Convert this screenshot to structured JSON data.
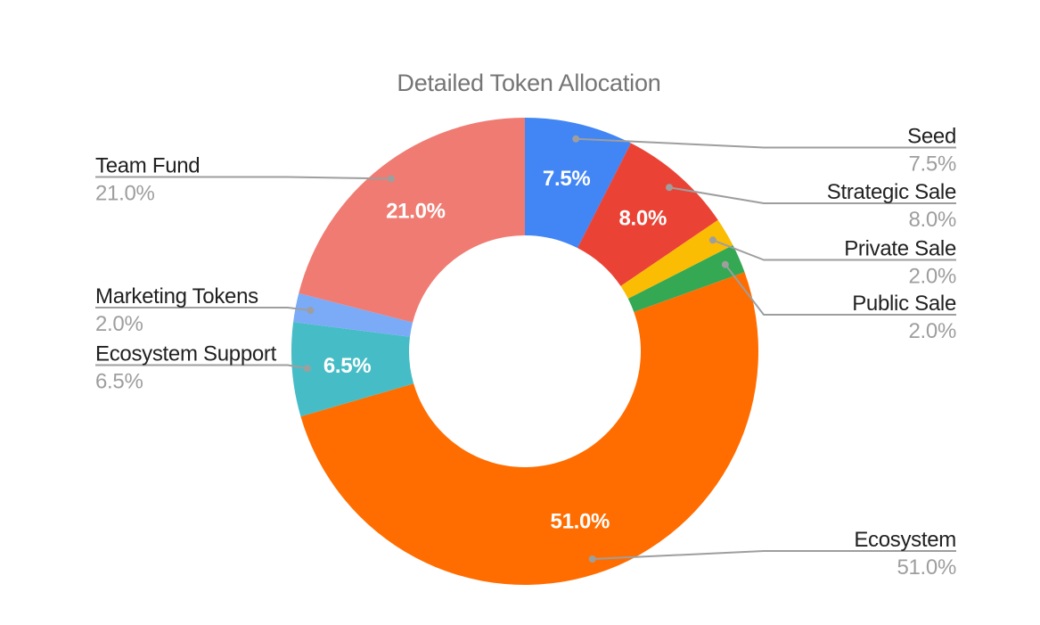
{
  "chart_data": {
    "type": "pie",
    "variant": "donut",
    "title": "Detailed Token Allocation",
    "legend_position": "labeled-callouts",
    "total": 100,
    "slices": [
      {
        "label": "Seed",
        "value": 7.5,
        "pct_label": "7.5%",
        "color": "#4285F4",
        "callout_side": "right",
        "inside_label": true
      },
      {
        "label": "Strategic Sale",
        "value": 8.0,
        "pct_label": "8.0%",
        "color": "#EA4335",
        "callout_side": "right",
        "inside_label": true
      },
      {
        "label": "Private Sale",
        "value": 2.0,
        "pct_label": "2.0%",
        "color": "#FBBC04",
        "callout_side": "right",
        "inside_label": false
      },
      {
        "label": "Public Sale",
        "value": 2.0,
        "pct_label": "2.0%",
        "color": "#34A853",
        "callout_side": "right",
        "inside_label": false
      },
      {
        "label": "Ecosystem",
        "value": 51.0,
        "pct_label": "51.0%",
        "color": "#FF6D01",
        "callout_side": "right",
        "inside_label": true
      },
      {
        "label": "Ecosystem Support",
        "value": 6.5,
        "pct_label": "6.5%",
        "color": "#46BDC6",
        "callout_side": "left",
        "inside_label": true
      },
      {
        "label": "Marketing Tokens",
        "value": 2.0,
        "pct_label": "2.0%",
        "color": "#7BAAF7",
        "callout_side": "left",
        "inside_label": false
      },
      {
        "label": "Team Fund",
        "value": 21.0,
        "pct_label": "21.0%",
        "color": "#F07B72",
        "callout_side": "left",
        "inside_label": true
      }
    ],
    "styles": {
      "background": "#ffffff",
      "title_color": "#757575",
      "label_color": "#212121",
      "value_color": "#9e9e9e",
      "callout_line_color": "#9e9e9e",
      "inside_label_color": "#ffffff"
    }
  }
}
